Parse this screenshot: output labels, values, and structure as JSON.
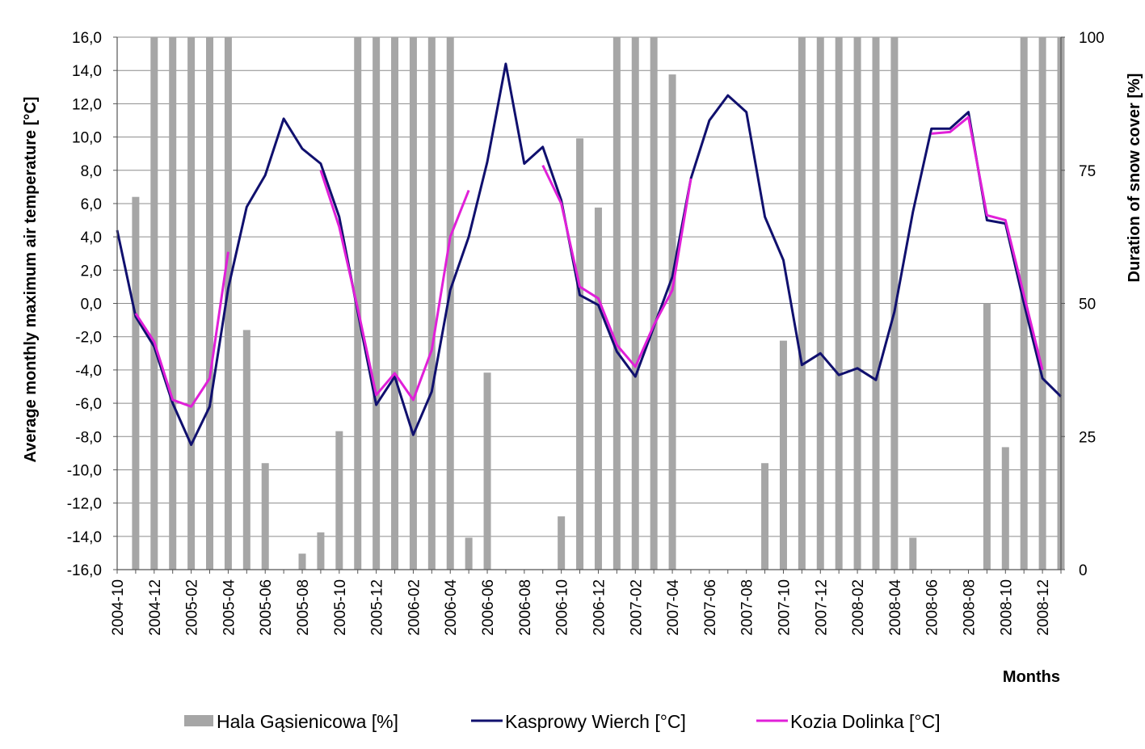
{
  "chart_data": {
    "type": "bar+line",
    "title": "",
    "xlabel": "Months",
    "ylabel": "Average monthly maximum air temperature [°C]",
    "y2label": "Duration of snow cover  [%]",
    "ylim": [
      -16,
      16
    ],
    "y2lim": [
      0,
      100
    ],
    "yticks": [
      "-16,0",
      "-14,0",
      "-12,0",
      "-10,0",
      "-8,0",
      "-6,0",
      "-4,0",
      "-2,0",
      "0,0",
      "2,0",
      "4,0",
      "6,0",
      "8,0",
      "10,0",
      "12,0",
      "14,0",
      "16,0"
    ],
    "y2ticks": [
      "0",
      "25",
      "50",
      "75",
      "100"
    ],
    "grid": true,
    "legend_position": "bottom",
    "months": [
      "2004-10",
      "2004-11",
      "2004-12",
      "2005-01",
      "2005-02",
      "2005-03",
      "2005-04",
      "2005-05",
      "2005-06",
      "2005-07",
      "2005-08",
      "2005-09",
      "2005-10",
      "2005-11",
      "2005-12",
      "2006-01",
      "2006-02",
      "2006-03",
      "2006-04",
      "2006-05",
      "2006-06",
      "2006-07",
      "2006-08",
      "2006-09",
      "2006-10",
      "2006-11",
      "2006-12",
      "2007-01",
      "2007-02",
      "2007-03",
      "2007-04",
      "2007-05",
      "2007-06",
      "2007-07",
      "2007-08",
      "2007-09",
      "2007-10",
      "2007-11",
      "2007-12",
      "2008-01",
      "2008-02",
      "2008-03",
      "2008-04",
      "2008-05",
      "2008-06",
      "2008-07",
      "2008-08",
      "2008-09",
      "2008-10",
      "2008-11",
      "2008-12",
      "2009-01"
    ],
    "x_tick_labels": [
      "2004-10",
      "2004-12",
      "2005-02",
      "2005-04",
      "2005-06",
      "2005-08",
      "2005-10",
      "2005-12",
      "2006-02",
      "2006-04",
      "2006-06",
      "2006-08",
      "2006-10",
      "2006-12",
      "2007-02",
      "2007-04",
      "2007-06",
      "2007-08",
      "2007-10",
      "2007-12",
      "2008-02",
      "2008-04",
      "2008-06",
      "2008-08",
      "2008-10",
      "2008-12"
    ],
    "series": [
      {
        "name": "Hala Gąsienicowa [%]",
        "type": "bar",
        "axis": "right",
        "color": "#a6a6a6",
        "values": [
          null,
          70,
          100,
          100,
          100,
          100,
          100,
          45,
          20,
          0,
          3,
          7,
          26,
          100,
          100,
          100,
          100,
          100,
          100,
          6,
          37,
          0,
          0,
          0,
          10,
          81,
          68,
          100,
          100,
          100,
          93,
          0,
          0,
          0,
          0,
          20,
          43,
          100,
          100,
          100,
          100,
          100,
          100,
          6,
          0,
          0,
          0,
          50,
          23,
          100,
          100,
          100
        ]
      },
      {
        "name": "Kasprowy Wierch [°C]",
        "type": "line",
        "axis": "left",
        "color": "#10106e",
        "values": [
          4.4,
          -0.8,
          -2.6,
          -6.0,
          -8.5,
          -6.2,
          0.9,
          5.8,
          7.7,
          11.1,
          9.3,
          8.4,
          5.2,
          -0.5,
          -6.1,
          -4.4,
          -7.9,
          -5.3,
          0.8,
          4.0,
          8.5,
          14.4,
          8.4,
          9.4,
          6.2,
          0.5,
          -0.1,
          -2.9,
          -4.4,
          -1.4,
          1.6,
          7.5,
          11.0,
          12.5,
          11.5,
          5.2,
          2.6,
          -3.7,
          -3.0,
          -4.3,
          -3.9,
          -4.6,
          -0.5,
          5.5,
          10.5,
          10.5,
          11.5,
          5.0,
          4.8,
          0.0,
          -4.5,
          -5.6
        ]
      },
      {
        "name": "Kozia Dolinka [°C]",
        "type": "line",
        "axis": "left",
        "color": "#e020d8",
        "values": [
          null,
          -0.6,
          -2.3,
          -5.8,
          -6.2,
          -4.5,
          3.1,
          null,
          null,
          null,
          null,
          8.0,
          4.6,
          -0.3,
          -5.5,
          -4.2,
          -5.8,
          -2.8,
          4.0,
          6.8,
          null,
          null,
          null,
          8.3,
          6.0,
          1.0,
          0.3,
          -2.5,
          -3.8,
          -1.3,
          0.8,
          7.5,
          null,
          null,
          null,
          null,
          null,
          null,
          null,
          null,
          null,
          null,
          null,
          null,
          10.2,
          10.3,
          11.2,
          5.3,
          5.0,
          0.5,
          -4.0,
          null
        ]
      }
    ]
  }
}
